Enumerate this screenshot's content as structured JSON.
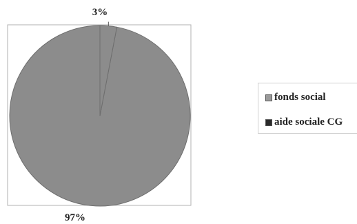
{
  "chart_data": {
    "type": "pie",
    "categories": [
      "fonds social",
      "aide sociale CG"
    ],
    "values": [
      3,
      97
    ],
    "data_labels": [
      "3%",
      "97%"
    ],
    "legend": {
      "position": "right",
      "entries": [
        "fonds social",
        "aide sociale CG"
      ]
    },
    "colors": {
      "slice_fill": "#8c8c8c",
      "fonds_social_swatch": "#9a9a9a",
      "aide_sociale_swatch": "#2a2a2a",
      "slice_border": "#6e6e6e",
      "plot_border": "#b0b0b0",
      "leader_line": "#555555"
    }
  }
}
